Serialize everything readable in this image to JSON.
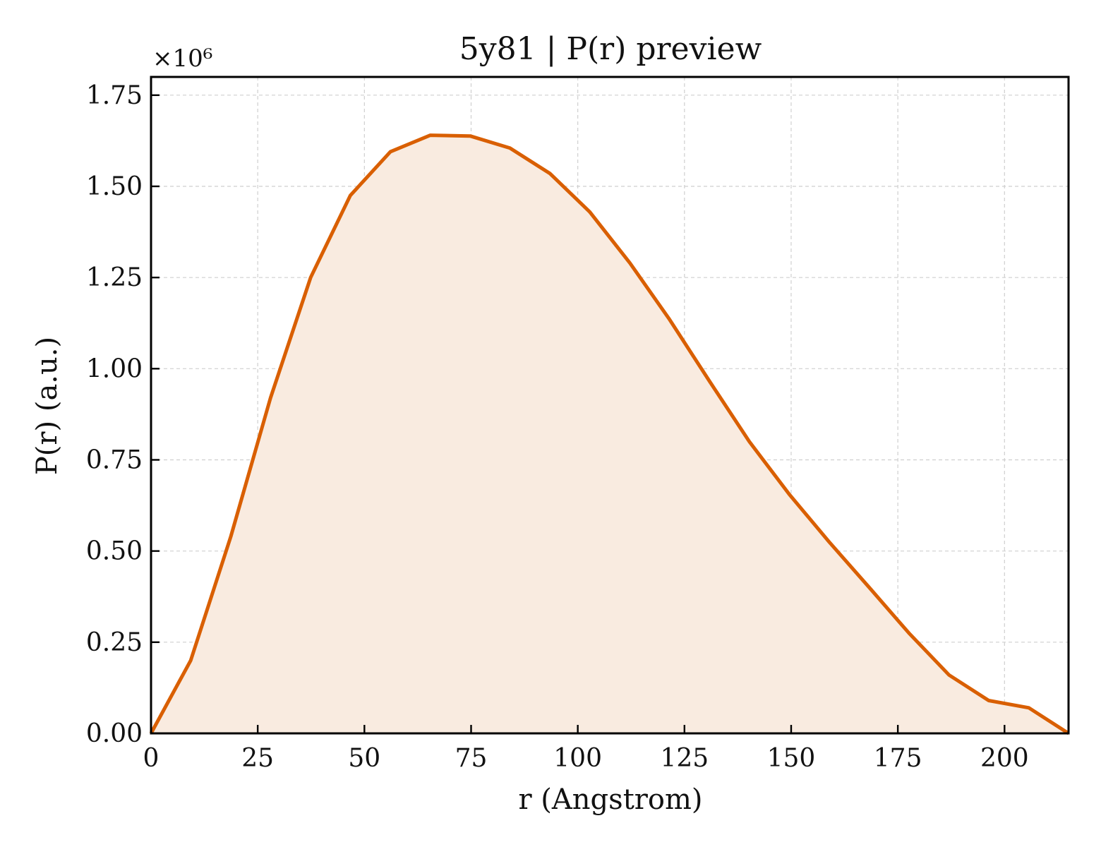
{
  "chart_data": {
    "type": "area",
    "title": "5y81 | P(r) preview",
    "xlabel": "r (Angstrom)",
    "ylabel": "P(r) (a.u.)",
    "y_multiplier_label": "×10⁶",
    "xlim": [
      0,
      215
    ],
    "ylim": [
      0,
      1.8
    ],
    "x_ticks": [
      "0",
      "25",
      "50",
      "75",
      "100",
      "125",
      "150",
      "175",
      "200"
    ],
    "y_ticks": [
      "0.00",
      "0.25",
      "0.50",
      "0.75",
      "1.00",
      "1.25",
      "1.50",
      "1.75"
    ],
    "grid": true,
    "line_color": "#d95f02",
    "fill_color": "#f9ebe0",
    "series": [
      {
        "x": [
          0,
          9.3,
          18.7,
          28.0,
          37.4,
          46.7,
          56.1,
          65.4,
          74.8,
          84.1,
          93.5,
          102.8,
          112.2,
          121.5,
          130.9,
          140.2,
          149.6,
          158.9,
          168.3,
          177.6,
          187.0,
          196.3,
          205.7,
          215.0
        ],
        "y": [
          0.0,
          0.2,
          0.54,
          0.92,
          1.25,
          1.475,
          1.595,
          1.64,
          1.638,
          1.605,
          1.535,
          1.43,
          1.29,
          1.135,
          0.965,
          0.8,
          0.655,
          0.525,
          0.4,
          0.275,
          0.16,
          0.09,
          0.07,
          0.0
        ]
      }
    ]
  }
}
